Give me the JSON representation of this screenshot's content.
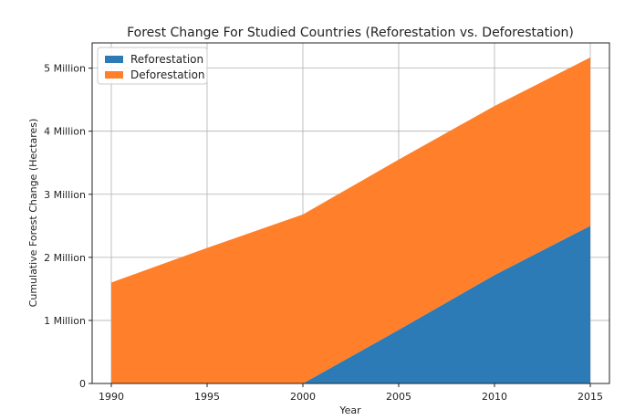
{
  "chart_data": {
    "type": "area",
    "stacked": true,
    "title": "Forest Change For Studied Countries (Reforestation vs. Deforestation)",
    "xlabel": "Year",
    "ylabel": "Cumulative Forest Change (Hectares)",
    "x": [
      1990,
      1995,
      2000,
      2005,
      2010,
      2015
    ],
    "xlim": [
      1989,
      2016
    ],
    "ylim": [
      0,
      5400000
    ],
    "x_ticks": [
      {
        "value": 1990,
        "label": "1990"
      },
      {
        "value": 1995,
        "label": "1995"
      },
      {
        "value": 2000,
        "label": "2000"
      },
      {
        "value": 2005,
        "label": "2005"
      },
      {
        "value": 2010,
        "label": "2010"
      },
      {
        "value": 2015,
        "label": "2015"
      }
    ],
    "y_ticks": [
      {
        "value": 0,
        "label": "0"
      },
      {
        "value": 1000000,
        "label": "1 Million"
      },
      {
        "value": 2000000,
        "label": "2 Million"
      },
      {
        "value": 3000000,
        "label": "3 Million"
      },
      {
        "value": 4000000,
        "label": "4 Million"
      },
      {
        "value": 5000000,
        "label": "5 Million"
      }
    ],
    "series": [
      {
        "name": "Reforestation",
        "color": "#2c7bb6",
        "values": [
          0,
          0,
          0,
          850000,
          1720000,
          2500000
        ]
      },
      {
        "name": "Deforestation",
        "color": "#ff7f2a",
        "values": [
          1600000,
          2150000,
          2680000,
          2700000,
          2680000,
          2670000
        ]
      }
    ],
    "grid": true,
    "legend_position": "top-left"
  }
}
